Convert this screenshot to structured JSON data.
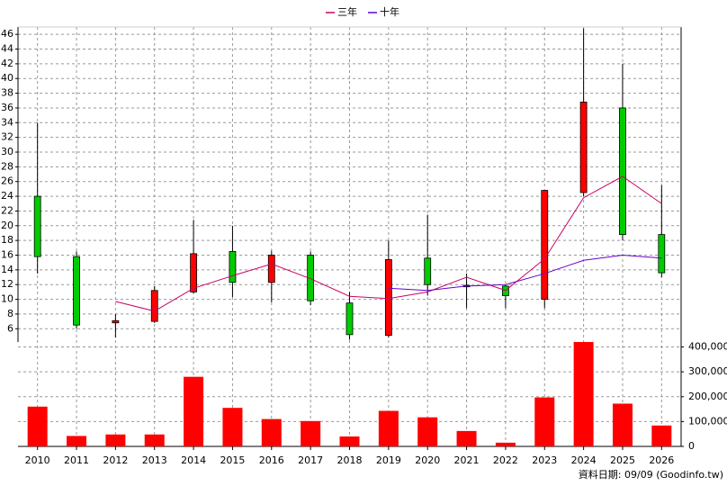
{
  "chart_data": {
    "type": "candlestick",
    "categories": [
      "2010",
      "2011",
      "2012",
      "2013",
      "2014",
      "2015",
      "2016",
      "2017",
      "2018",
      "2019",
      "2020",
      "2021",
      "2022",
      "2023",
      "2024",
      "2025",
      "2026"
    ],
    "candles": {
      "open": [
        24,
        15.8,
        6.8,
        7,
        11,
        16.5,
        12.3,
        16,
        9.5,
        5.1,
        15.6,
        11.9,
        11.8,
        10,
        24.5,
        36,
        18.8
      ],
      "high": [
        34,
        16.5,
        8,
        11.8,
        20.8,
        20,
        16.6,
        16.5,
        11,
        18,
        21.5,
        13.5,
        12,
        24.8,
        46.8,
        42,
        25.5
      ],
      "low": [
        13.5,
        6,
        4.8,
        6.8,
        10.8,
        10.3,
        9.6,
        9.2,
        4.5,
        4.8,
        10.5,
        8.8,
        8.8,
        8.8,
        24,
        18,
        13
      ],
      "close": [
        15.8,
        6.5,
        7.1,
        11.2,
        16.2,
        12.3,
        16,
        9.8,
        5.2,
        15.4,
        12,
        11.7,
        10.5,
        24.8,
        36.8,
        18.8,
        13.6
      ],
      "up_color": "#ff0000",
      "down_color": "#00cc00"
    },
    "series": [
      {
        "name": "三年",
        "color": "#cc0066",
        "values": [
          null,
          null,
          9.7,
          8.4,
          11.5,
          13.2,
          14.8,
          12.8,
          10.4,
          10.1,
          11,
          13,
          11.2,
          15.5,
          23.8,
          26.7,
          23
        ]
      },
      {
        "name": "十年",
        "color": "#6600cc",
        "values": [
          null,
          null,
          null,
          null,
          null,
          null,
          null,
          null,
          null,
          11.5,
          11.2,
          11.8,
          12,
          13.5,
          15.3,
          16,
          15.6
        ]
      }
    ],
    "volume": {
      "color": "#ff0000",
      "axis": "y2",
      "values": [
        160000,
        42000,
        48000,
        48000,
        280000,
        155000,
        110000,
        102000,
        40000,
        143000,
        117000,
        62000,
        15000,
        197000,
        420000,
        172000,
        84000
      ]
    },
    "ylim": [
      4.2,
      47
    ],
    "yticks": [
      6,
      8,
      10,
      12,
      14,
      16,
      18,
      20,
      22,
      24,
      26,
      28,
      30,
      32,
      34,
      36,
      38,
      40,
      42,
      44,
      46
    ],
    "y2lim": [
      0,
      420000
    ],
    "y2ticks": [
      0,
      {
        "value": 100000,
        "label": "100,000"
      },
      {
        "value": 200000,
        "label": "200,000"
      },
      {
        "value": 300000,
        "label": "300,000"
      },
      {
        "value": 400000,
        "label": "400,000"
      }
    ],
    "grid": true,
    "footnote": "資料日期: 09/09 (Goodinfo.tw)"
  }
}
